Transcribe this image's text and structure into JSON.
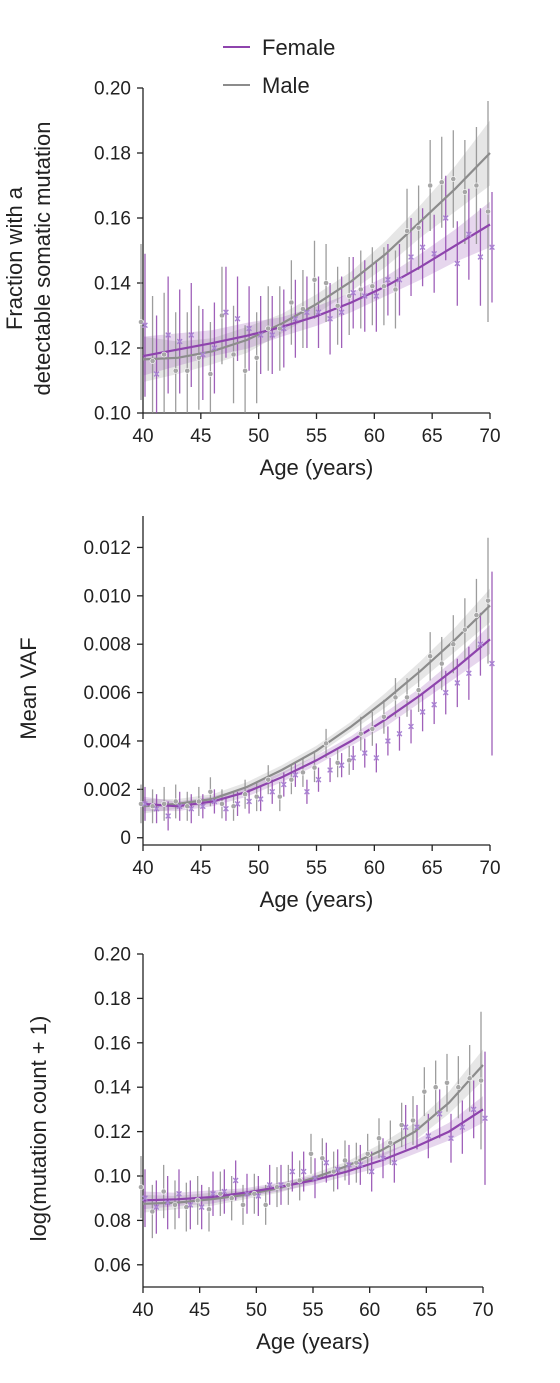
{
  "legend": {
    "items": [
      {
        "label": "Female",
        "color": "#8e44ad"
      },
      {
        "label": "Male",
        "color": "#8c8c8c"
      }
    ]
  },
  "colors": {
    "female": "#8e44ad",
    "female_point": "#a983d3",
    "male": "#8c8c8c",
    "male_point": "#a6a6a6"
  },
  "chart_data": [
    {
      "type": "scatter",
      "id": "fraction",
      "xlabel": "Age (years)",
      "ylabel": [
        "Fraction with a",
        "detectable somatic mutation"
      ],
      "xlim": [
        40,
        70
      ],
      "ylim": [
        0.1,
        0.2
      ],
      "xticks": [
        40,
        45,
        50,
        55,
        60,
        65,
        70
      ],
      "xtick_labels": [
        "40",
        "45",
        "50",
        "55",
        "60",
        "65",
        "70"
      ],
      "yticks": [
        0.1,
        0.12,
        0.14,
        0.16,
        0.18,
        0.2
      ],
      "ytick_labels": [
        "0.10",
        "0.12",
        "0.14",
        "0.16",
        "0.18",
        "0.20"
      ],
      "series": [
        {
          "name": "Female",
          "marker": "x",
          "x": [
            40,
            41,
            42,
            43,
            44,
            45,
            46,
            47,
            48,
            49,
            50,
            51,
            52,
            53,
            54,
            55,
            56,
            57,
            58,
            59,
            60,
            61,
            62,
            63,
            64,
            65,
            66,
            67,
            68,
            69,
            70
          ],
          "y": [
            0.127,
            0.112,
            0.124,
            0.122,
            0.124,
            0.118,
            0.12,
            0.131,
            0.129,
            0.126,
            0.124,
            0.124,
            0.126,
            0.129,
            0.131,
            0.131,
            0.129,
            0.131,
            0.137,
            0.136,
            0.136,
            0.141,
            0.141,
            0.148,
            0.151,
            0.149,
            0.16,
            0.146,
            0.155,
            0.148,
            0.151
          ],
          "err": [
            0.022,
            0.018,
            0.018,
            0.016,
            0.016,
            0.014,
            0.014,
            0.014,
            0.013,
            0.013,
            0.012,
            0.012,
            0.012,
            0.012,
            0.011,
            0.011,
            0.011,
            0.011,
            0.011,
            0.011,
            0.011,
            0.011,
            0.011,
            0.012,
            0.012,
            0.012,
            0.013,
            0.013,
            0.014,
            0.015,
            0.017
          ],
          "fit": [
            0.1175,
            0.1195,
            0.1215,
            0.1238,
            0.1265,
            0.1298,
            0.134,
            0.139,
            0.145,
            0.1515,
            0.158
          ],
          "fit_ci": [
            0.006,
            0.005,
            0.004,
            0.004,
            0.003,
            0.003,
            0.003,
            0.003,
            0.004,
            0.005,
            0.007
          ]
        },
        {
          "name": "Male",
          "marker": "circle",
          "x": [
            40,
            41,
            42,
            43,
            44,
            45,
            46,
            47,
            48,
            49,
            50,
            51,
            52,
            53,
            54,
            55,
            56,
            57,
            58,
            59,
            60,
            61,
            62,
            63,
            64,
            65,
            66,
            67,
            68,
            69,
            70
          ],
          "y": [
            0.128,
            0.116,
            0.118,
            0.113,
            0.113,
            0.117,
            0.112,
            0.13,
            0.118,
            0.113,
            0.117,
            0.126,
            0.126,
            0.134,
            0.132,
            0.141,
            0.14,
            0.133,
            0.136,
            0.138,
            0.139,
            0.139,
            0.138,
            0.156,
            0.157,
            0.17,
            0.171,
            0.172,
            0.168,
            0.17,
            0.162
          ],
          "err": [
            0.024,
            0.02,
            0.019,
            0.018,
            0.018,
            0.016,
            0.016,
            0.015,
            0.015,
            0.014,
            0.014,
            0.013,
            0.013,
            0.013,
            0.012,
            0.012,
            0.012,
            0.012,
            0.012,
            0.012,
            0.012,
            0.012,
            0.012,
            0.013,
            0.013,
            0.014,
            0.014,
            0.015,
            0.016,
            0.018,
            0.034
          ],
          "fit": [
            0.1165,
            0.117,
            0.119,
            0.1225,
            0.1275,
            0.1335,
            0.1405,
            0.149,
            0.159,
            0.169,
            0.18
          ],
          "fit_ci": [
            0.007,
            0.005,
            0.004,
            0.004,
            0.003,
            0.003,
            0.003,
            0.004,
            0.005,
            0.007,
            0.01
          ]
        }
      ]
    },
    {
      "type": "scatter",
      "id": "vaf",
      "xlabel": "Age (years)",
      "ylabel": [
        "Mean VAF"
      ],
      "xlim": [
        40,
        70
      ],
      "ylim": [
        -0.0003,
        0.0133
      ],
      "xticks": [
        40,
        45,
        50,
        55,
        60,
        65,
        70
      ],
      "xtick_labels": [
        "40",
        "45",
        "50",
        "55",
        "60",
        "65",
        "70"
      ],
      "yticks": [
        0,
        0.002,
        0.004,
        0.006,
        0.008,
        0.01,
        0.012
      ],
      "ytick_labels": [
        "0",
        "0.002",
        "0.004",
        "0.006",
        "0.008",
        "0.010",
        "0.012"
      ],
      "series": [
        {
          "name": "Female",
          "marker": "x",
          "x": [
            40,
            41,
            42,
            43,
            44,
            45,
            46,
            47,
            48,
            49,
            50,
            51,
            52,
            53,
            54,
            55,
            56,
            57,
            58,
            59,
            60,
            61,
            62,
            63,
            64,
            65,
            66,
            67,
            68,
            69,
            70
          ],
          "y": [
            0.0014,
            0.0012,
            0.0009,
            0.0013,
            0.0012,
            0.0013,
            0.0015,
            0.0012,
            0.0014,
            0.0015,
            0.0016,
            0.0019,
            0.0022,
            0.0026,
            0.0019,
            0.0024,
            0.0028,
            0.003,
            0.0033,
            0.0035,
            0.0033,
            0.004,
            0.0043,
            0.0046,
            0.0052,
            0.0055,
            0.006,
            0.0064,
            0.0068,
            0.008,
            0.0072
          ],
          "err": [
            0.0007,
            0.0006,
            0.0006,
            0.0006,
            0.0006,
            0.0005,
            0.0005,
            0.0005,
            0.0005,
            0.0005,
            0.0005,
            0.0005,
            0.0005,
            0.0005,
            0.0005,
            0.0005,
            0.0005,
            0.0005,
            0.0005,
            0.0006,
            0.0006,
            0.0006,
            0.0007,
            0.0007,
            0.0008,
            0.0008,
            0.0009,
            0.001,
            0.0011,
            0.0013,
            0.0038
          ],
          "fit": [
            0.0014,
            0.0013,
            0.0015,
            0.0019,
            0.0025,
            0.0032,
            0.004,
            0.0049,
            0.0059,
            0.007,
            0.0082
          ],
          "fit_ci": [
            0.0003,
            0.0002,
            0.0002,
            0.0002,
            0.0002,
            0.0002,
            0.0002,
            0.0003,
            0.0003,
            0.0004,
            0.0006
          ]
        },
        {
          "name": "Male",
          "marker": "circle",
          "x": [
            40,
            41,
            42,
            43,
            44,
            45,
            46,
            47,
            48,
            49,
            50,
            51,
            52,
            53,
            54,
            55,
            56,
            57,
            58,
            59,
            60,
            61,
            62,
            63,
            64,
            65,
            66,
            67,
            68,
            69,
            70
          ],
          "y": [
            0.0014,
            0.0013,
            0.0014,
            0.0015,
            0.0013,
            0.0015,
            0.0019,
            0.0014,
            0.0013,
            0.0018,
            0.0017,
            0.0024,
            0.0017,
            0.0024,
            0.0027,
            0.0029,
            0.0039,
            0.0031,
            0.0032,
            0.0043,
            0.0045,
            0.005,
            0.0058,
            0.0058,
            0.0061,
            0.0075,
            0.0072,
            0.008,
            0.0086,
            0.0092,
            0.0098
          ],
          "err": [
            0.0008,
            0.0007,
            0.0007,
            0.0007,
            0.0006,
            0.0006,
            0.0006,
            0.0006,
            0.0006,
            0.0006,
            0.0006,
            0.0006,
            0.0006,
            0.0006,
            0.0006,
            0.0006,
            0.0006,
            0.0006,
            0.0006,
            0.0007,
            0.0007,
            0.0007,
            0.0008,
            0.0008,
            0.0009,
            0.001,
            0.0011,
            0.0012,
            0.0013,
            0.0015,
            0.0026
          ],
          "fit": [
            0.0013,
            0.0014,
            0.0016,
            0.0021,
            0.0028,
            0.0036,
            0.0046,
            0.0057,
            0.0069,
            0.0082,
            0.0096
          ],
          "fit_ci": [
            0.0003,
            0.0002,
            0.0002,
            0.0002,
            0.0002,
            0.0002,
            0.0002,
            0.0003,
            0.0004,
            0.0005,
            0.0007
          ]
        }
      ]
    },
    {
      "type": "scatter",
      "id": "logcount",
      "xlabel": "Age (years)",
      "ylabel": [
        "log(mutation count + 1)"
      ],
      "xlim": [
        40,
        70
      ],
      "ylim": [
        0.05,
        0.2
      ],
      "xticks": [
        40,
        45,
        50,
        55,
        60,
        65,
        70
      ],
      "xtick_labels": [
        "40",
        "45",
        "50",
        "55",
        "60",
        "65",
        "70"
      ],
      "yticks": [
        0.06,
        0.08,
        0.1,
        0.12,
        0.14,
        0.16,
        0.18,
        0.2
      ],
      "ytick_labels": [
        "0.06",
        "0.08",
        "0.10",
        "0.12",
        "0.14",
        "0.16",
        "0.18",
        "0.20"
      ],
      "series": [
        {
          "name": "Female",
          "marker": "x",
          "x": [
            40,
            41,
            42,
            43,
            44,
            45,
            46,
            47,
            48,
            49,
            50,
            51,
            52,
            53,
            54,
            55,
            56,
            57,
            58,
            59,
            60,
            61,
            62,
            63,
            64,
            65,
            66,
            67,
            68,
            69,
            70
          ],
          "y": [
            0.09,
            0.086,
            0.088,
            0.092,
            0.087,
            0.086,
            0.092,
            0.093,
            0.098,
            0.092,
            0.091,
            0.096,
            0.096,
            0.102,
            0.102,
            0.099,
            0.106,
            0.103,
            0.105,
            0.105,
            0.102,
            0.108,
            0.106,
            0.122,
            0.122,
            0.118,
            0.128,
            0.117,
            0.122,
            0.13,
            0.126
          ],
          "err": [
            0.013,
            0.012,
            0.012,
            0.011,
            0.011,
            0.01,
            0.01,
            0.01,
            0.009,
            0.009,
            0.009,
            0.009,
            0.009,
            0.009,
            0.009,
            0.009,
            0.009,
            0.009,
            0.009,
            0.009,
            0.009,
            0.009,
            0.009,
            0.01,
            0.01,
            0.01,
            0.011,
            0.011,
            0.012,
            0.013,
            0.03
          ],
          "fit": [
            0.089,
            0.0895,
            0.0905,
            0.0925,
            0.095,
            0.098,
            0.102,
            0.107,
            0.113,
            0.12,
            0.13
          ],
          "fit_ci": [
            0.004,
            0.003,
            0.003,
            0.002,
            0.002,
            0.002,
            0.002,
            0.003,
            0.003,
            0.004,
            0.006
          ]
        },
        {
          "name": "Male",
          "marker": "circle",
          "x": [
            40,
            41,
            42,
            43,
            44,
            45,
            46,
            47,
            48,
            49,
            50,
            51,
            52,
            53,
            54,
            55,
            56,
            57,
            58,
            59,
            60,
            61,
            62,
            63,
            64,
            65,
            66,
            67,
            68,
            69,
            70
          ],
          "y": [
            0.095,
            0.084,
            0.093,
            0.087,
            0.086,
            0.089,
            0.085,
            0.092,
            0.09,
            0.087,
            0.092,
            0.087,
            0.095,
            0.096,
            0.098,
            0.11,
            0.108,
            0.102,
            0.107,
            0.106,
            0.11,
            0.117,
            0.115,
            0.123,
            0.125,
            0.138,
            0.14,
            0.142,
            0.14,
            0.144,
            0.143
          ],
          "err": [
            0.014,
            0.012,
            0.012,
            0.011,
            0.011,
            0.011,
            0.01,
            0.01,
            0.01,
            0.009,
            0.009,
            0.009,
            0.009,
            0.009,
            0.009,
            0.009,
            0.009,
            0.009,
            0.009,
            0.009,
            0.009,
            0.009,
            0.01,
            0.01,
            0.011,
            0.011,
            0.012,
            0.013,
            0.014,
            0.015,
            0.031
          ],
          "fit": [
            0.0875,
            0.088,
            0.0895,
            0.0915,
            0.0945,
            0.099,
            0.1045,
            0.1115,
            0.12,
            0.133,
            0.15
          ],
          "fit_ci": [
            0.004,
            0.003,
            0.003,
            0.002,
            0.002,
            0.002,
            0.002,
            0.003,
            0.004,
            0.005,
            0.007
          ]
        }
      ]
    }
  ]
}
